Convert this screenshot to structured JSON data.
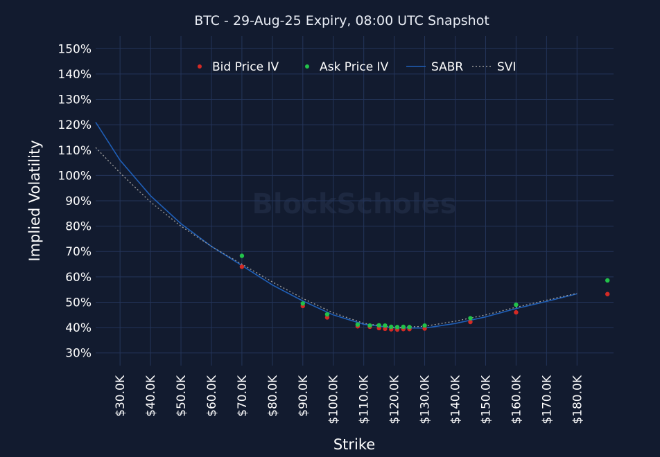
{
  "chart_data": {
    "type": "scatter",
    "title": "BTC - 29-Aug-25 Expiry, 08:00 UTC Snapshot",
    "xlabel": "Strike",
    "ylabel": "Implied Volatility",
    "watermark": "BlockScholes",
    "xlim": [
      22000,
      192000
    ],
    "ylim": [
      25,
      155
    ],
    "x_ticks": [
      30000,
      40000,
      50000,
      60000,
      70000,
      80000,
      90000,
      100000,
      110000,
      120000,
      130000,
      140000,
      150000,
      160000,
      170000,
      180000
    ],
    "x_tick_labels": [
      "$30.0K",
      "$40.0K",
      "$50.0K",
      "$60.0K",
      "$70.0K",
      "$80.0K",
      "$90.0K",
      "$100.0K",
      "$110.0K",
      "$120.0K",
      "$130.0K",
      "$140.0K",
      "$150.0K",
      "$160.0K",
      "$170.0K",
      "$180.0K"
    ],
    "y_ticks": [
      30,
      40,
      50,
      60,
      70,
      80,
      90,
      100,
      110,
      120,
      130,
      140,
      150
    ],
    "y_tick_labels": [
      "30%",
      "40%",
      "50%",
      "60%",
      "70%",
      "80%",
      "90%",
      "100%",
      "110%",
      "120%",
      "130%",
      "140%",
      "150%"
    ],
    "grid": true,
    "legend_position": "top-right",
    "colors": {
      "background": "#121b2f",
      "grid": "#24355a",
      "bid": "#d42a25",
      "ask": "#22c24a",
      "sabr": "#1f5fb8",
      "svi": "#9a9a9a"
    },
    "series": [
      {
        "name": "Bid Price IV",
        "kind": "markers",
        "points": [
          [
            70000,
            64
          ],
          [
            90000,
            48.5
          ],
          [
            98000,
            44
          ],
          [
            108000,
            40.5
          ],
          [
            112000,
            40.3
          ],
          [
            115000,
            39.8
          ],
          [
            117000,
            39.5
          ],
          [
            119000,
            39.3
          ],
          [
            121000,
            39.2
          ],
          [
            123000,
            39.4
          ],
          [
            125000,
            39.4
          ],
          [
            130000,
            39.6
          ],
          [
            145000,
            42.2
          ],
          [
            160000,
            46
          ],
          [
            190000,
            53.2
          ]
        ]
      },
      {
        "name": "Ask Price IV",
        "kind": "markers",
        "points": [
          [
            70000,
            68.3
          ],
          [
            90000,
            49.5
          ],
          [
            98000,
            45.2
          ],
          [
            108000,
            41.2
          ],
          [
            112000,
            40.8
          ],
          [
            115000,
            40.9
          ],
          [
            117000,
            40.8
          ],
          [
            119000,
            40.3
          ],
          [
            121000,
            40.2
          ],
          [
            123000,
            40.3
          ],
          [
            125000,
            40.2
          ],
          [
            130000,
            40.8
          ],
          [
            145000,
            43.7
          ],
          [
            160000,
            49
          ],
          [
            190000,
            58.6
          ]
        ]
      },
      {
        "name": "SABR",
        "kind": "line",
        "points": [
          [
            22000,
            121
          ],
          [
            30000,
            106
          ],
          [
            40000,
            92
          ],
          [
            50000,
            81
          ],
          [
            60000,
            72
          ],
          [
            70000,
            64.5
          ],
          [
            80000,
            56.8
          ],
          [
            90000,
            50.5
          ],
          [
            100000,
            45
          ],
          [
            110000,
            41.3
          ],
          [
            120000,
            39.9
          ],
          [
            130000,
            39.8
          ],
          [
            140000,
            41.6
          ],
          [
            150000,
            44.2
          ],
          [
            160000,
            47.5
          ],
          [
            170000,
            50.3
          ],
          [
            180000,
            53.3
          ]
        ]
      },
      {
        "name": "SVI",
        "kind": "dotted-line",
        "points": [
          [
            22000,
            111
          ],
          [
            30000,
            101
          ],
          [
            40000,
            89.5
          ],
          [
            50000,
            80
          ],
          [
            60000,
            72
          ],
          [
            70000,
            65
          ],
          [
            80000,
            58
          ],
          [
            90000,
            51.5
          ],
          [
            100000,
            45.8
          ],
          [
            110000,
            41.7
          ],
          [
            120000,
            40
          ],
          [
            130000,
            40.5
          ],
          [
            140000,
            42.5
          ],
          [
            150000,
            45
          ],
          [
            160000,
            48
          ],
          [
            170000,
            50.8
          ],
          [
            180000,
            53.5
          ]
        ]
      }
    ]
  }
}
